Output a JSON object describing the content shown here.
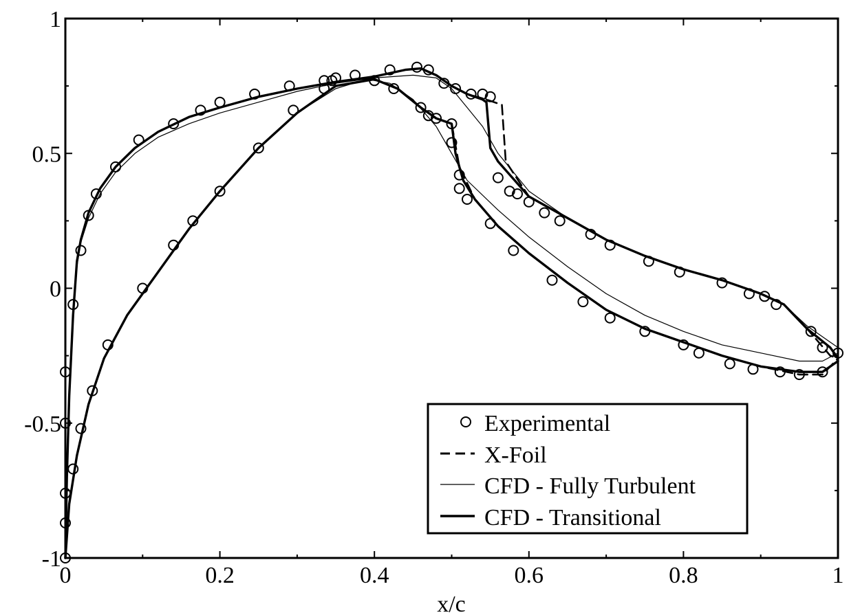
{
  "chart_data": {
    "type": "line",
    "title": "",
    "xlabel": "x/c",
    "ylabel": "",
    "xlim": [
      0,
      1
    ],
    "ylim": [
      -1,
      1
    ],
    "xticks": [
      0,
      0.2,
      0.4,
      0.6,
      0.8,
      1
    ],
    "xtick_labels": [
      "0",
      "0.2",
      "0.4",
      "0.6",
      "0.8",
      "1"
    ],
    "yticks": [
      -1,
      -0.5,
      0,
      0.5,
      1
    ],
    "ytick_labels": [
      "-1",
      "-0.5",
      "0",
      "0.5",
      "1"
    ],
    "grid": false,
    "legend_position": "bottom-right",
    "legend": [
      {
        "label": "Experimental",
        "style": "circle"
      },
      {
        "label": "X-Foil",
        "style": "dashed"
      },
      {
        "label": "CFD - Fully Turbulent",
        "style": "thin"
      },
      {
        "label": "CFD - Transitional",
        "style": "thick"
      }
    ],
    "series": [
      {
        "name": "Experimental",
        "style": "circle",
        "points": [
          [
            0.0,
            -1.0
          ],
          [
            0.0,
            -0.87
          ],
          [
            0.0,
            -0.76
          ],
          [
            0.0,
            -0.5
          ],
          [
            0.0,
            -0.31
          ],
          [
            0.01,
            -0.06
          ],
          [
            0.02,
            0.14
          ],
          [
            0.03,
            0.27
          ],
          [
            0.04,
            0.35
          ],
          [
            0.065,
            0.45
          ],
          [
            0.095,
            0.55
          ],
          [
            0.14,
            0.61
          ],
          [
            0.175,
            0.66
          ],
          [
            0.2,
            0.69
          ],
          [
            0.245,
            0.72
          ],
          [
            0.29,
            0.75
          ],
          [
            0.335,
            0.77
          ],
          [
            0.345,
            0.77
          ],
          [
            0.35,
            0.78
          ],
          [
            0.375,
            0.79
          ],
          [
            0.42,
            0.81
          ],
          [
            0.455,
            0.82
          ],
          [
            0.47,
            0.81
          ],
          [
            0.49,
            0.76
          ],
          [
            0.505,
            0.74
          ],
          [
            0.525,
            0.72
          ],
          [
            0.54,
            0.72
          ],
          [
            0.55,
            0.71
          ],
          [
            0.01,
            -0.67
          ],
          [
            0.02,
            -0.52
          ],
          [
            0.035,
            -0.38
          ],
          [
            0.055,
            -0.21
          ],
          [
            0.1,
            0.0
          ],
          [
            0.14,
            0.16
          ],
          [
            0.165,
            0.25
          ],
          [
            0.2,
            0.36
          ],
          [
            0.25,
            0.52
          ],
          [
            0.295,
            0.66
          ],
          [
            0.335,
            0.74
          ],
          [
            0.4,
            0.77
          ],
          [
            0.425,
            0.74
          ],
          [
            0.46,
            0.67
          ],
          [
            0.47,
            0.64
          ],
          [
            0.48,
            0.63
          ],
          [
            0.5,
            0.61
          ],
          [
            0.5,
            0.54
          ],
          [
            0.51,
            0.42
          ],
          [
            0.51,
            0.37
          ],
          [
            0.52,
            0.33
          ],
          [
            0.55,
            0.24
          ],
          [
            0.58,
            0.14
          ],
          [
            0.63,
            0.03
          ],
          [
            0.67,
            -0.05
          ],
          [
            0.705,
            -0.11
          ],
          [
            0.75,
            -0.16
          ],
          [
            0.8,
            -0.21
          ],
          [
            0.82,
            -0.24
          ],
          [
            0.86,
            -0.28
          ],
          [
            0.89,
            -0.3
          ],
          [
            0.925,
            -0.31
          ],
          [
            0.95,
            -0.32
          ],
          [
            0.98,
            -0.31
          ],
          [
            1.0,
            -0.24
          ],
          [
            0.56,
            0.41
          ],
          [
            0.575,
            0.36
          ],
          [
            0.585,
            0.35
          ],
          [
            0.6,
            0.32
          ],
          [
            0.62,
            0.28
          ],
          [
            0.64,
            0.25
          ],
          [
            0.68,
            0.2
          ],
          [
            0.705,
            0.16
          ],
          [
            0.755,
            0.1
          ],
          [
            0.795,
            0.06
          ],
          [
            0.85,
            0.02
          ],
          [
            0.885,
            -0.02
          ],
          [
            0.905,
            -0.03
          ],
          [
            0.92,
            -0.06
          ],
          [
            0.965,
            -0.16
          ],
          [
            0.98,
            -0.22
          ]
        ]
      },
      {
        "name": "X-Foil",
        "style": "dashed",
        "points": [
          [
            0.0,
            -1.0
          ],
          [
            0.002,
            -0.7
          ],
          [
            0.005,
            -0.4
          ],
          [
            0.01,
            -0.1
          ],
          [
            0.015,
            0.1
          ],
          [
            0.02,
            0.18
          ],
          [
            0.03,
            0.28
          ],
          [
            0.045,
            0.37
          ],
          [
            0.065,
            0.45
          ],
          [
            0.09,
            0.52
          ],
          [
            0.12,
            0.58
          ],
          [
            0.16,
            0.635
          ],
          [
            0.2,
            0.67
          ],
          [
            0.25,
            0.71
          ],
          [
            0.3,
            0.74
          ],
          [
            0.35,
            0.765
          ],
          [
            0.4,
            0.785
          ],
          [
            0.44,
            0.81
          ],
          [
            0.46,
            0.815
          ],
          [
            0.48,
            0.79
          ],
          [
            0.5,
            0.75
          ],
          [
            0.52,
            0.72
          ],
          [
            0.545,
            0.7
          ],
          [
            0.565,
            0.68
          ],
          [
            0.57,
            0.47
          ],
          [
            0.6,
            0.34
          ],
          [
            0.65,
            0.26
          ],
          [
            0.7,
            0.18
          ],
          [
            0.75,
            0.12
          ],
          [
            0.8,
            0.07
          ],
          [
            0.85,
            0.03
          ],
          [
            0.9,
            -0.02
          ],
          [
            0.93,
            -0.06
          ],
          [
            0.96,
            -0.15
          ],
          [
            0.99,
            -0.25
          ],
          [
            1.0,
            -0.26
          ]
        ]
      },
      {
        "name": "X-Foil",
        "style": "dashed",
        "points": [
          [
            0.0,
            -1.0
          ],
          [
            0.005,
            -0.8
          ],
          [
            0.015,
            -0.62
          ],
          [
            0.03,
            -0.43
          ],
          [
            0.05,
            -0.26
          ],
          [
            0.08,
            -0.1
          ],
          [
            0.12,
            0.06
          ],
          [
            0.16,
            0.22
          ],
          [
            0.2,
            0.36
          ],
          [
            0.25,
            0.52
          ],
          [
            0.3,
            0.65
          ],
          [
            0.35,
            0.75
          ],
          [
            0.4,
            0.775
          ],
          [
            0.43,
            0.74
          ],
          [
            0.46,
            0.67
          ],
          [
            0.48,
            0.63
          ],
          [
            0.5,
            0.61
          ],
          [
            0.51,
            0.45
          ],
          [
            0.53,
            0.33
          ],
          [
            0.56,
            0.23
          ],
          [
            0.6,
            0.13
          ],
          [
            0.65,
            0.02
          ],
          [
            0.7,
            -0.08
          ],
          [
            0.75,
            -0.15
          ],
          [
            0.8,
            -0.2
          ],
          [
            0.85,
            -0.25
          ],
          [
            0.9,
            -0.29
          ],
          [
            0.95,
            -0.32
          ],
          [
            0.98,
            -0.32
          ],
          [
            1.0,
            -0.26
          ]
        ]
      },
      {
        "name": "CFD - Fully Turbulent",
        "style": "thin",
        "points": [
          [
            0.0,
            -1.0
          ],
          [
            0.002,
            -0.7
          ],
          [
            0.005,
            -0.4
          ],
          [
            0.01,
            -0.1
          ],
          [
            0.015,
            0.08
          ],
          [
            0.02,
            0.17
          ],
          [
            0.03,
            0.26
          ],
          [
            0.045,
            0.35
          ],
          [
            0.065,
            0.43
          ],
          [
            0.09,
            0.5
          ],
          [
            0.12,
            0.56
          ],
          [
            0.16,
            0.61
          ],
          [
            0.2,
            0.65
          ],
          [
            0.25,
            0.69
          ],
          [
            0.3,
            0.73
          ],
          [
            0.35,
            0.76
          ],
          [
            0.4,
            0.78
          ],
          [
            0.45,
            0.79
          ],
          [
            0.48,
            0.78
          ],
          [
            0.5,
            0.74
          ],
          [
            0.52,
            0.67
          ],
          [
            0.54,
            0.6
          ],
          [
            0.56,
            0.5
          ],
          [
            0.6,
            0.36
          ],
          [
            0.65,
            0.26
          ],
          [
            0.7,
            0.18
          ],
          [
            0.75,
            0.12
          ],
          [
            0.8,
            0.07
          ],
          [
            0.85,
            0.03
          ],
          [
            0.9,
            -0.02
          ],
          [
            0.93,
            -0.06
          ],
          [
            0.96,
            -0.14
          ],
          [
            0.99,
            -0.2
          ],
          [
            1.0,
            -0.22
          ]
        ]
      },
      {
        "name": "CFD - Fully Turbulent",
        "style": "thin",
        "points": [
          [
            0.0,
            -1.0
          ],
          [
            0.005,
            -0.8
          ],
          [
            0.015,
            -0.62
          ],
          [
            0.03,
            -0.43
          ],
          [
            0.05,
            -0.26
          ],
          [
            0.08,
            -0.1
          ],
          [
            0.12,
            0.06
          ],
          [
            0.16,
            0.22
          ],
          [
            0.2,
            0.36
          ],
          [
            0.25,
            0.52
          ],
          [
            0.3,
            0.65
          ],
          [
            0.35,
            0.74
          ],
          [
            0.39,
            0.775
          ],
          [
            0.42,
            0.76
          ],
          [
            0.45,
            0.7
          ],
          [
            0.48,
            0.6
          ],
          [
            0.5,
            0.5
          ],
          [
            0.52,
            0.4
          ],
          [
            0.56,
            0.29
          ],
          [
            0.6,
            0.19
          ],
          [
            0.65,
            0.08
          ],
          [
            0.7,
            -0.02
          ],
          [
            0.75,
            -0.1
          ],
          [
            0.8,
            -0.16
          ],
          [
            0.85,
            -0.21
          ],
          [
            0.9,
            -0.24
          ],
          [
            0.95,
            -0.27
          ],
          [
            0.98,
            -0.27
          ],
          [
            1.0,
            -0.24
          ]
        ]
      },
      {
        "name": "CFD - Transitional",
        "style": "thick",
        "points": [
          [
            0.0,
            -1.0
          ],
          [
            0.002,
            -0.7
          ],
          [
            0.005,
            -0.4
          ],
          [
            0.01,
            -0.1
          ],
          [
            0.015,
            0.1
          ],
          [
            0.02,
            0.18
          ],
          [
            0.03,
            0.28
          ],
          [
            0.045,
            0.37
          ],
          [
            0.065,
            0.45
          ],
          [
            0.09,
            0.52
          ],
          [
            0.12,
            0.58
          ],
          [
            0.16,
            0.635
          ],
          [
            0.2,
            0.67
          ],
          [
            0.25,
            0.71
          ],
          [
            0.3,
            0.74
          ],
          [
            0.35,
            0.765
          ],
          [
            0.4,
            0.785
          ],
          [
            0.44,
            0.81
          ],
          [
            0.46,
            0.815
          ],
          [
            0.48,
            0.79
          ],
          [
            0.5,
            0.75
          ],
          [
            0.52,
            0.72
          ],
          [
            0.54,
            0.7
          ],
          [
            0.545,
            0.69
          ],
          [
            0.55,
            0.52
          ],
          [
            0.56,
            0.47
          ],
          [
            0.6,
            0.34
          ],
          [
            0.65,
            0.26
          ],
          [
            0.7,
            0.18
          ],
          [
            0.75,
            0.12
          ],
          [
            0.8,
            0.07
          ],
          [
            0.85,
            0.03
          ],
          [
            0.9,
            -0.02
          ],
          [
            0.93,
            -0.06
          ],
          [
            0.96,
            -0.15
          ],
          [
            0.99,
            -0.22
          ],
          [
            1.0,
            -0.26
          ]
        ]
      },
      {
        "name": "CFD - Transitional",
        "style": "thick",
        "points": [
          [
            0.0,
            -1.0
          ],
          [
            0.005,
            -0.8
          ],
          [
            0.015,
            -0.62
          ],
          [
            0.03,
            -0.43
          ],
          [
            0.05,
            -0.26
          ],
          [
            0.08,
            -0.1
          ],
          [
            0.12,
            0.06
          ],
          [
            0.16,
            0.22
          ],
          [
            0.2,
            0.36
          ],
          [
            0.25,
            0.52
          ],
          [
            0.3,
            0.65
          ],
          [
            0.35,
            0.75
          ],
          [
            0.4,
            0.775
          ],
          [
            0.43,
            0.74
          ],
          [
            0.46,
            0.67
          ],
          [
            0.48,
            0.63
          ],
          [
            0.5,
            0.61
          ],
          [
            0.505,
            0.5
          ],
          [
            0.515,
            0.4
          ],
          [
            0.53,
            0.33
          ],
          [
            0.56,
            0.23
          ],
          [
            0.6,
            0.13
          ],
          [
            0.65,
            0.02
          ],
          [
            0.7,
            -0.08
          ],
          [
            0.75,
            -0.15
          ],
          [
            0.8,
            -0.2
          ],
          [
            0.85,
            -0.25
          ],
          [
            0.9,
            -0.29
          ],
          [
            0.95,
            -0.31
          ],
          [
            0.98,
            -0.31
          ],
          [
            1.0,
            -0.27
          ]
        ]
      }
    ]
  }
}
